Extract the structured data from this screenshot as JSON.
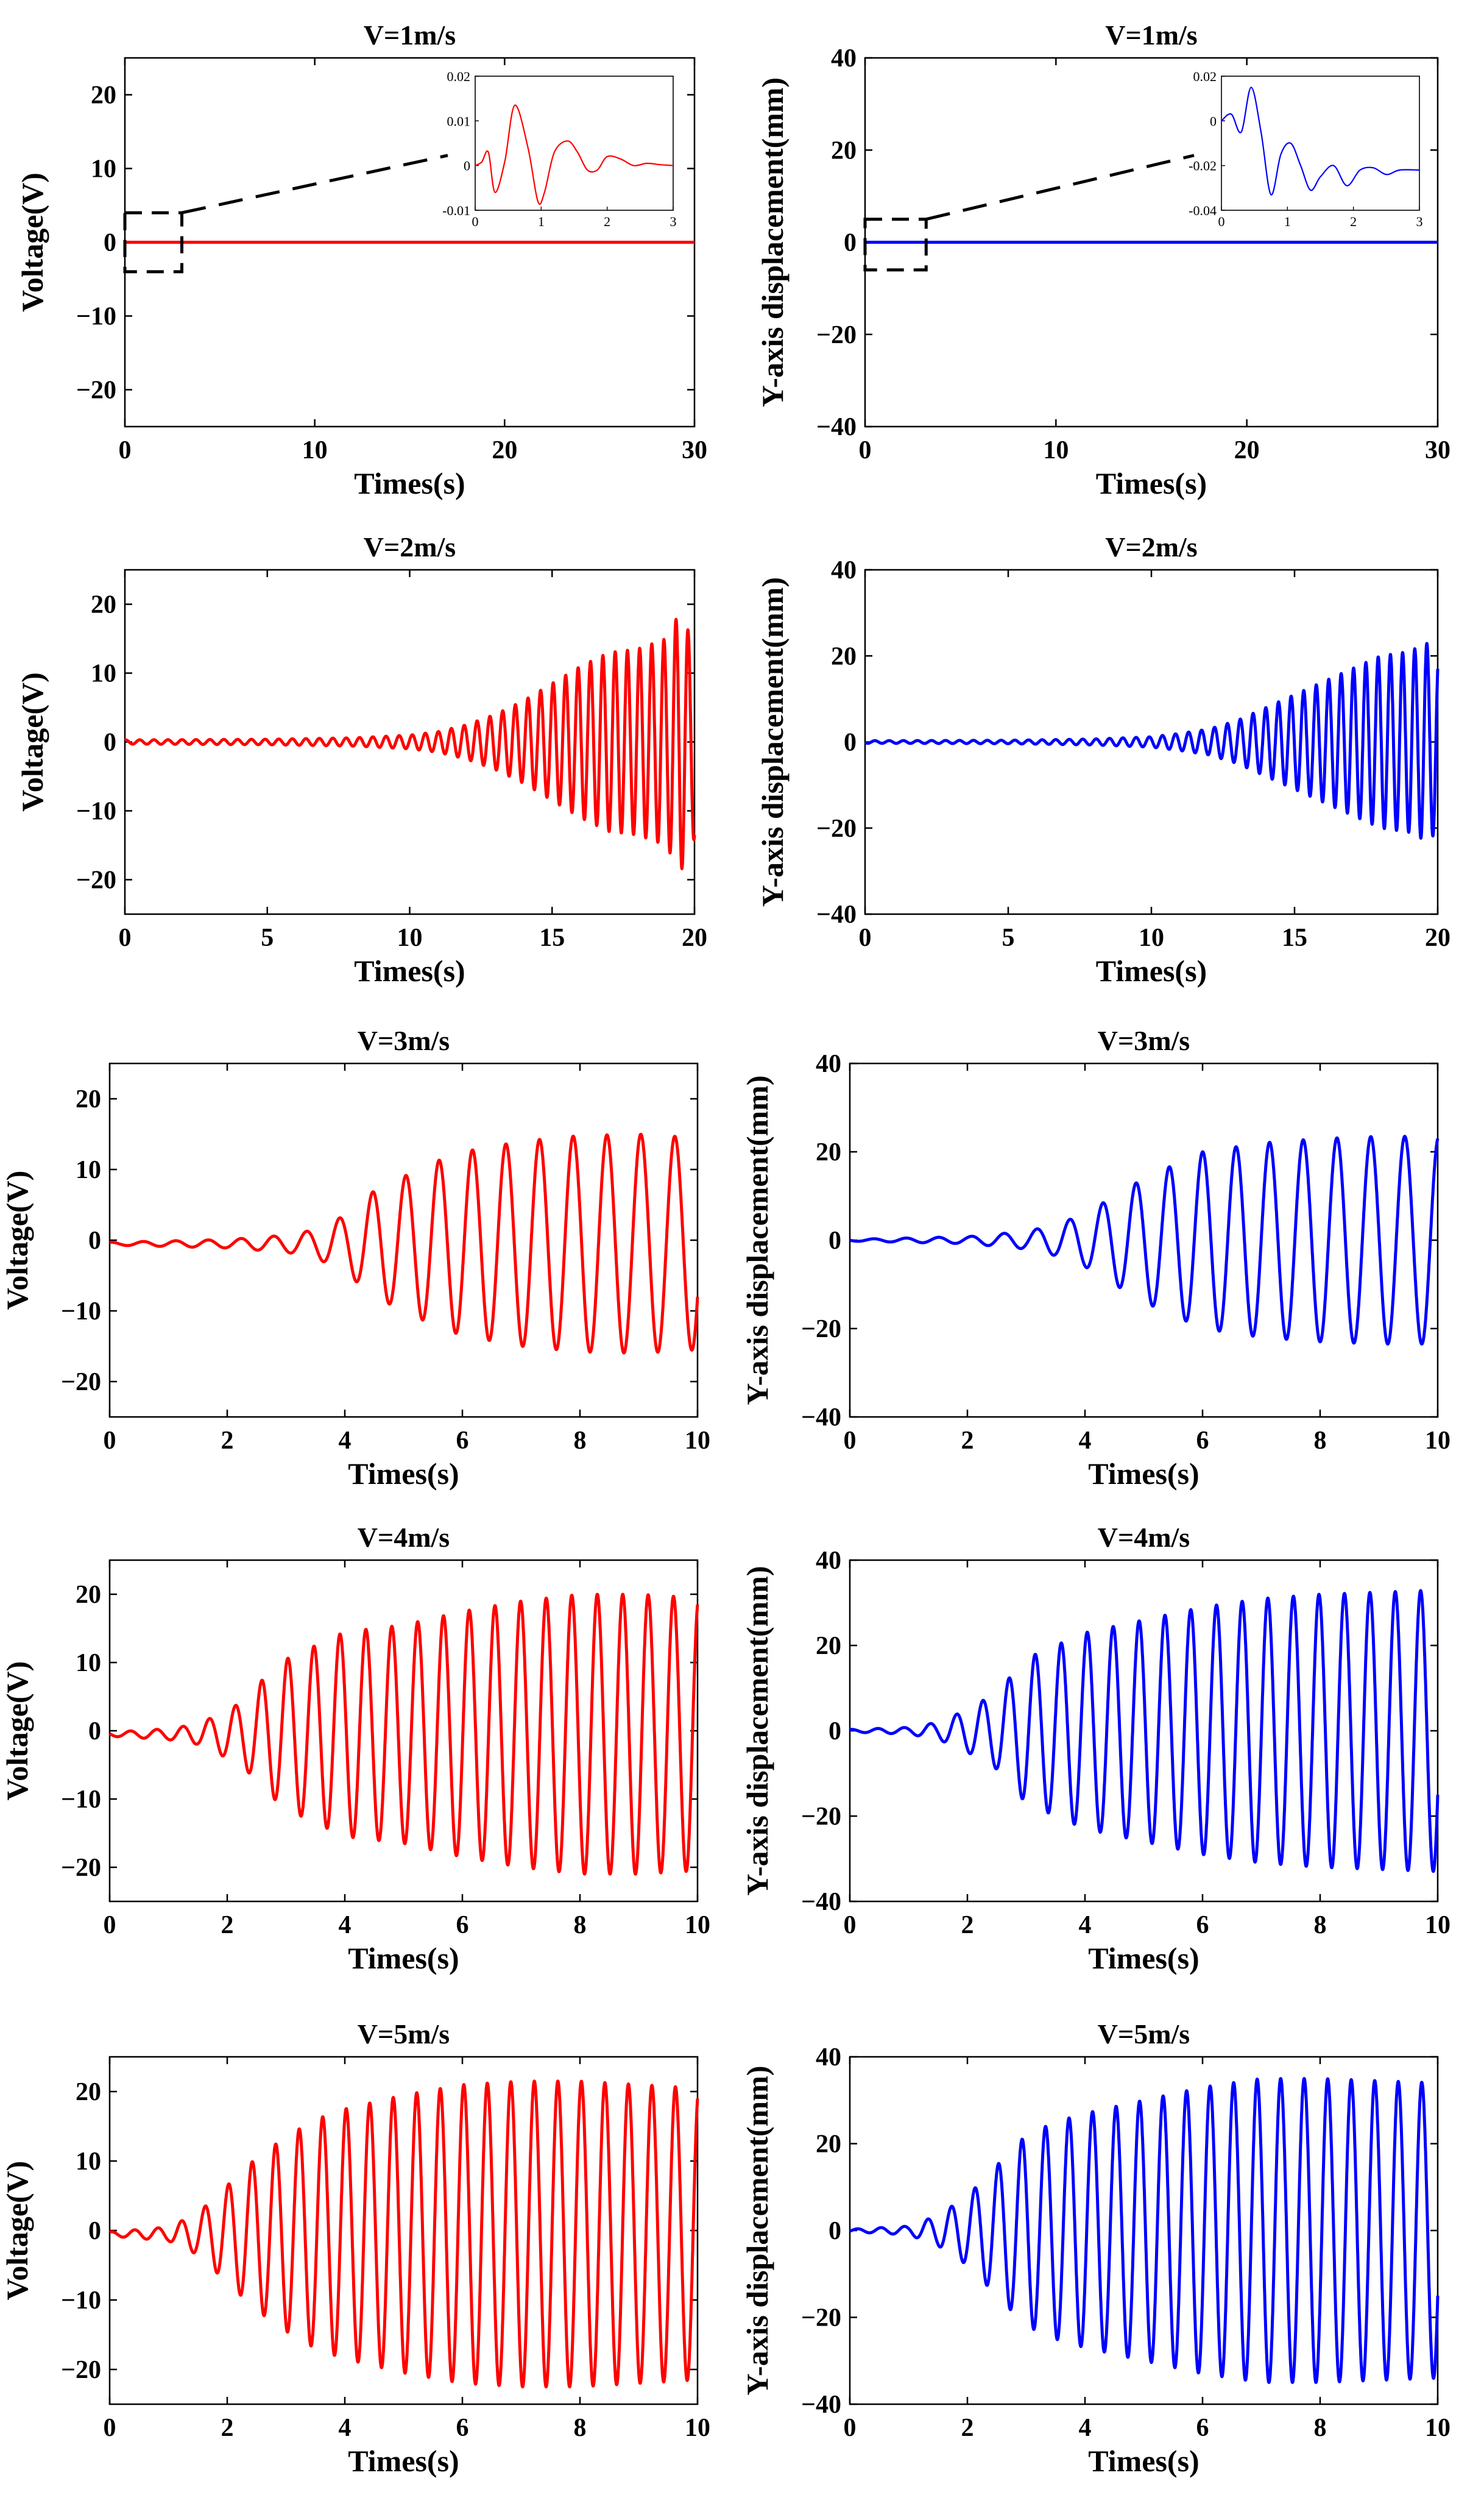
{
  "chart_data": [
    {
      "type": "line",
      "title": "V=1m/s",
      "xlabel": "Times(s)",
      "ylabel": "Voltage(V)",
      "xlim": [
        0,
        30
      ],
      "ylim": [
        -25,
        25
      ],
      "xticks": [
        0,
        10,
        20,
        30
      ],
      "yticks": [
        -20,
        -10,
        0,
        10,
        20
      ],
      "series": [
        {
          "name": "Voltage",
          "color": "#ff0000",
          "values": "flat at ~0 V over 0-30 s; decaying oscillation of amplitude ~0.013 V during 0-3 s"
        }
      ],
      "inset": {
        "xlim": [
          0,
          3
        ],
        "ylim": [
          -0.01,
          0.02
        ],
        "xticks": [
          0,
          1,
          2,
          3
        ],
        "yticks": [
          -0.01,
          0,
          0.01,
          0.02
        ],
        "x": [
          0,
          0.1,
          0.2,
          0.3,
          0.45,
          0.6,
          0.8,
          0.95,
          1.05,
          1.2,
          1.4,
          1.55,
          1.7,
          1.85,
          2.0,
          2.2,
          2.4,
          2.6,
          2.8,
          3.0
        ],
        "y": [
          0.0,
          0.0008,
          0.003,
          -0.006,
          0.001,
          0.0135,
          0.004,
          -0.008,
          -0.006,
          0.003,
          0.0055,
          0.003,
          -0.001,
          -0.001,
          0.002,
          0.0015,
          0.0,
          0.0005,
          0.0002,
          0.0
        ]
      },
      "zoom_box_data": {
        "x": [
          0,
          3
        ],
        "y": [
          -4,
          4
        ]
      }
    },
    {
      "type": "line",
      "title": "V=1m/s",
      "xlabel": "Times(s)",
      "ylabel": "Y-axis displacement(mm)",
      "xlim": [
        0,
        30
      ],
      "ylim": [
        -40,
        40
      ],
      "xticks": [
        0,
        10,
        20,
        30
      ],
      "yticks": [
        -40,
        -20,
        0,
        20,
        40
      ],
      "series": [
        {
          "name": "Y displacement",
          "color": "#0000ff",
          "values": "flat at ~0 mm over 0-30 s; decaying oscillation of amplitude ~0.015 mm during 0-3 s"
        }
      ],
      "inset": {
        "xlim": [
          0,
          3
        ],
        "ylim": [
          -0.04,
          0.02
        ],
        "xticks": [
          0,
          1,
          2,
          3
        ],
        "yticks": [
          -0.04,
          -0.02,
          0,
          0.02
        ],
        "x": [
          0,
          0.15,
          0.3,
          0.45,
          0.6,
          0.75,
          0.9,
          1.05,
          1.2,
          1.35,
          1.5,
          1.7,
          1.9,
          2.1,
          2.3,
          2.5,
          2.7,
          3.0
        ],
        "y": [
          0.0,
          0.003,
          -0.005,
          0.015,
          -0.005,
          -0.033,
          -0.015,
          -0.01,
          -0.02,
          -0.031,
          -0.025,
          -0.02,
          -0.029,
          -0.022,
          -0.021,
          -0.024,
          -0.022,
          -0.022
        ]
      },
      "zoom_box_data": {
        "x": [
          0,
          3.2
        ],
        "y": [
          -6,
          5
        ]
      }
    },
    {
      "type": "line",
      "title": "V=2m/s",
      "xlabel": "Times(s)",
      "ylabel": "Voltage(V)",
      "xlim": [
        0,
        20
      ],
      "ylim": [
        -25,
        25
      ],
      "xticks": [
        0,
        5,
        10,
        15,
        20
      ],
      "yticks": [
        -20,
        -10,
        0,
        10,
        20
      ],
      "series": [
        {
          "name": "Voltage",
          "color": "#ff0000",
          "envelope": {
            "t": [
              0,
              5,
              8,
              10,
              11,
              12,
              13,
              14,
              15,
              16,
              17,
              18,
              19,
              19.5,
              20
            ],
            "amp": [
              0.3,
              0.4,
              0.6,
              1.0,
              1.5,
              2.5,
              4,
              6,
              8.5,
              11,
              13,
              13.5,
              15,
              19,
              14
            ]
          },
          "period_s": [
            0.5,
            0.42
          ],
          "offset": 0,
          "last_value": -13.5
        }
      ]
    },
    {
      "type": "line",
      "title": "V=2m/s",
      "xlabel": "Times(s)",
      "ylabel": "Y-axis displacement(mm)",
      "xlim": [
        0,
        20
      ],
      "ylim": [
        -40,
        40
      ],
      "xticks": [
        0,
        5,
        10,
        15,
        20
      ],
      "yticks": [
        -40,
        -20,
        0,
        20,
        40
      ],
      "series": [
        {
          "name": "Y displacement",
          "color": "#0000ff",
          "envelope": {
            "t": [
              0,
              5,
              8,
              10,
              11,
              12,
              13,
              14,
              15,
              16,
              17,
              18,
              19,
              19.6,
              20
            ],
            "amp": [
              0.3,
              0.4,
              0.7,
              1.2,
              2,
              3,
              5,
              8,
              11,
              14,
              17,
              20,
              21,
              23,
              21
            ]
          },
          "period_s": [
            0.5,
            0.42
          ],
          "offset": 0,
          "last_value": 17
        }
      ]
    },
    {
      "type": "line",
      "title": "V=3m/s",
      "xlabel": "Times(s)",
      "ylabel": "Voltage(V)",
      "xlim": [
        0,
        10
      ],
      "ylim": [
        -25,
        25
      ],
      "xticks": [
        0,
        2,
        4,
        6,
        8,
        10
      ],
      "yticks": [
        -20,
        -10,
        0,
        10,
        20
      ],
      "series": [
        {
          "name": "Voltage",
          "color": "#ff0000",
          "envelope": {
            "t": [
              0,
              1,
              2,
              3,
              3.5,
              4,
              4.5,
              5,
              5.5,
              6,
              7,
              8,
              9,
              10
            ],
            "amp": [
              0.2,
              0.4,
              0.6,
              1.2,
              2.0,
              4.0,
              7.5,
              9.5,
              11.5,
              13.0,
              14.5,
              15.3,
              15.5,
              15.0
            ]
          },
          "period_s": [
            0.55,
            0.58
          ],
          "offset": -0.5,
          "last_value": -8
        }
      ]
    },
    {
      "type": "line",
      "title": "V=3m/s",
      "xlabel": "Times(s)",
      "ylabel": "Y-axis displacement(mm)",
      "xlim": [
        0,
        10
      ],
      "ylim": [
        -40,
        40
      ],
      "xticks": [
        0,
        2,
        4,
        6,
        8,
        10
      ],
      "yticks": [
        -40,
        -20,
        0,
        20,
        40
      ],
      "series": [
        {
          "name": "Y displacement",
          "color": "#0000ff",
          "envelope": {
            "t": [
              0,
              1,
              2,
              3,
              3.5,
              4,
              4.5,
              5,
              5.5,
              6,
              7,
              8,
              9,
              10
            ],
            "amp": [
              0.2,
              0.5,
              0.8,
              2.0,
              3.5,
              6.0,
              10,
              14,
              17,
              20,
              22,
              23,
              23.5,
              23.5
            ]
          },
          "period_s": [
            0.55,
            0.58
          ],
          "offset": 0,
          "last_value": 23
        }
      ]
    },
    {
      "type": "line",
      "title": "V=4m/s",
      "xlabel": "Times(s)",
      "ylabel": "Voltage(V)",
      "xlim": [
        0,
        10
      ],
      "ylim": [
        -25,
        25
      ],
      "xticks": [
        0,
        2,
        4,
        6,
        8,
        10
      ],
      "yticks": [
        -20,
        -10,
        0,
        10,
        20
      ],
      "series": [
        {
          "name": "Voltage",
          "color": "#ff0000",
          "envelope": {
            "t": [
              0,
              1,
              1.5,
              2,
              2.3,
              2.6,
              3,
              3.5,
              4,
              5,
              6,
              7,
              8,
              9,
              10
            ],
            "amp": [
              0.3,
              0.8,
              1.5,
              3.5,
              5.0,
              8.0,
              11,
              13,
              15,
              16,
              18,
              19.5,
              20.5,
              20.5,
              20.0
            ]
          },
          "period_s": [
            0.45,
            0.43
          ],
          "offset": -0.5,
          "last_value": 18.5
        }
      ]
    },
    {
      "type": "line",
      "title": "V=4m/s",
      "xlabel": "Times(s)",
      "ylabel": "Y-axis displacement(mm)",
      "xlim": [
        0,
        10
      ],
      "ylim": [
        -40,
        40
      ],
      "xticks": [
        0,
        2,
        4,
        6,
        8,
        10
      ],
      "yticks": [
        -40,
        -20,
        0,
        20,
        40
      ],
      "series": [
        {
          "name": "Y displacement",
          "color": "#0000ff",
          "envelope": {
            "t": [
              0,
              1,
              1.5,
              2,
              2.5,
              3,
              3.5,
              4,
              5,
              6,
              7,
              8,
              9,
              10
            ],
            "amp": [
              0.3,
              0.8,
              2.0,
              5.0,
              9.0,
              17,
              20,
              23,
              26,
              29,
              31,
              32,
              32.5,
              33
            ]
          },
          "period_s": [
            0.45,
            0.43
          ],
          "offset": 0,
          "last_value": -15
        }
      ]
    },
    {
      "type": "line",
      "title": "V=5m/s",
      "xlabel": "Times(s)",
      "ylabel": "Voltage(V)",
      "xlim": [
        0,
        10
      ],
      "ylim": [
        -25,
        25
      ],
      "xticks": [
        0,
        2,
        4,
        6,
        8,
        10
      ],
      "yticks": [
        -20,
        -10,
        0,
        10,
        20
      ],
      "series": [
        {
          "name": "Voltage",
          "color": "#ff0000",
          "envelope": {
            "t": [
              0,
              1,
              1.5,
              2,
              2.5,
              3,
              3.5,
              4,
              5,
              6,
              7,
              8,
              9,
              10
            ],
            "amp": [
              0.3,
              1.0,
              3.0,
              7.0,
              11,
              14,
              16.5,
              18,
              20,
              21.5,
              22,
              22,
              21.5,
              21
            ]
          },
          "period_s": [
            0.4,
            0.4
          ],
          "offset": -0.5,
          "last_value": 19
        }
      ]
    },
    {
      "type": "line",
      "title": "V=5m/s",
      "xlabel": "Times(s)",
      "ylabel": "Y-axis displacement(mm)",
      "xlim": [
        0,
        10
      ],
      "ylim": [
        -40,
        40
      ],
      "xticks": [
        0,
        2,
        4,
        6,
        8,
        10
      ],
      "yticks": [
        -40,
        -20,
        0,
        20,
        40
      ],
      "series": [
        {
          "name": "Y displacement",
          "color": "#0000ff",
          "envelope": {
            "t": [
              0,
              1,
              1.5,
              2,
              2.5,
              3,
              3.5,
              4,
              5,
              6,
              7,
              8,
              9,
              10
            ],
            "amp": [
              0.3,
              1.0,
              3.5,
              8.0,
              15,
              22,
              25,
              27,
              30,
              33,
              35,
              35,
              34.5,
              34
            ]
          },
          "period_s": [
            0.4,
            0.4
          ],
          "offset": 0,
          "last_value": -15
        }
      ]
    }
  ]
}
